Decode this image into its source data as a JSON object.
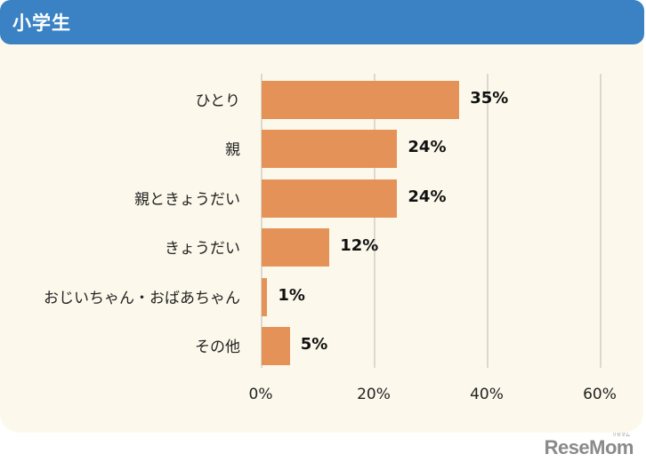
{
  "header": {
    "title": "小学生"
  },
  "colors": {
    "header": "#3a82c4",
    "panel": "#fcf9ec",
    "bar": "#e59258",
    "grid": "#dcd8d0"
  },
  "logo": {
    "text": "ReseMom",
    "sub": "リセマム"
  },
  "chart_data": {
    "type": "bar",
    "orientation": "horizontal",
    "title": "小学生",
    "categories": [
      "ひとり",
      "親",
      "親ときょうだい",
      "きょうだい",
      "おじいちゃん・おばあちゃん",
      "その他"
    ],
    "values": [
      35,
      24,
      24,
      12,
      1,
      5
    ],
    "value_labels": [
      "35%",
      "24%",
      "24%",
      "12%",
      "1%",
      "5%"
    ],
    "xlabel": "",
    "ylabel": "",
    "xlim": [
      0,
      60
    ],
    "xticks": [
      "0%",
      "20%",
      "40%",
      "60%"
    ],
    "grid": true,
    "legend": null
  }
}
